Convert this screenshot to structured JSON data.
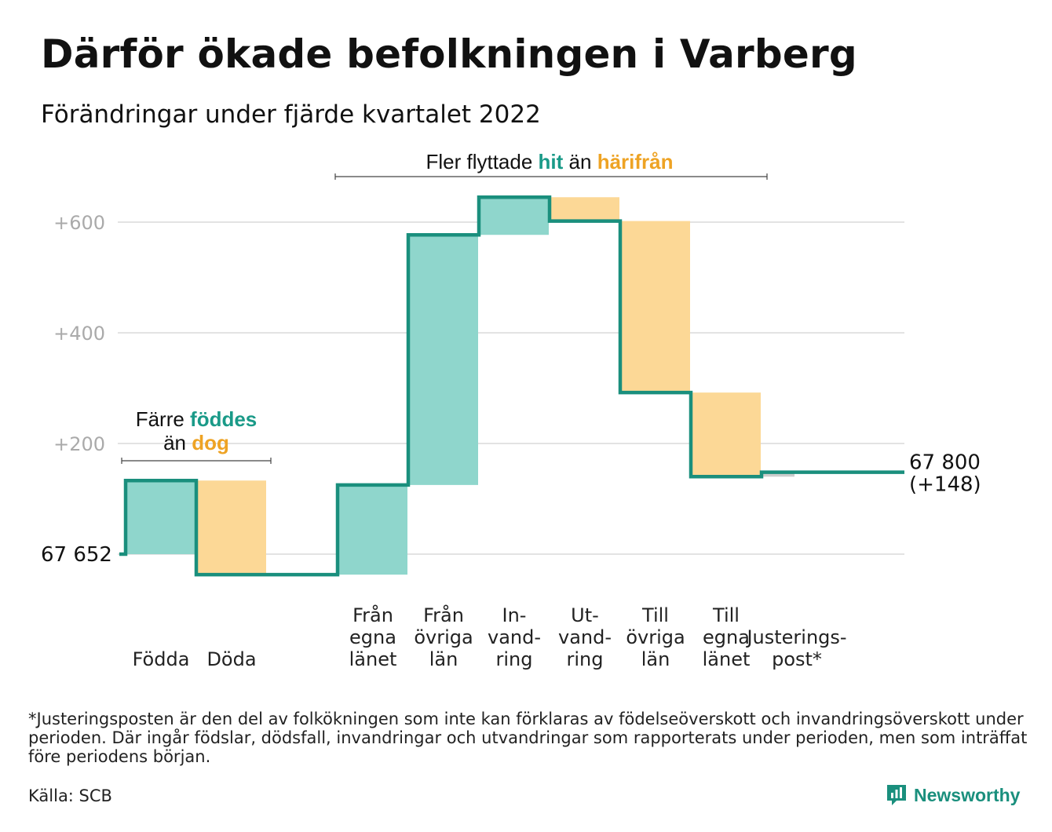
{
  "title": "Därför ökade befolkningen i Varberg",
  "subtitle": "Förändringar under fjärde kvartalet 2022",
  "footnote": "*Justeringsposten är den del av folkökningen som inte kan förklaras av födelseöverskott och invandringsöverskott under perioden. Där ingår födslar, dödsfall, invandringar och utvandringar som rapporterats under perioden, men som inträffat före periodens början.",
  "source": "Källa: SCB",
  "logo_text": "Newsworthy",
  "colors": {
    "inflow": "#8fd6cc",
    "outflow": "#fcd896",
    "line": "#1a8f7d",
    "adjust": "#cccccc",
    "teal_text": "#1a9a88",
    "orange_text": "#eea324"
  },
  "chart_data": {
    "type": "waterfall",
    "start_label": "67 652",
    "end_label_line1": "67 800",
    "end_label_line2": "(+148)",
    "y_ticks": [
      {
        "value": 200,
        "label": "+200"
      },
      {
        "value": 400,
        "label": "+400"
      },
      {
        "value": 600,
        "label": "+600"
      }
    ],
    "ylim": [
      -40,
      700
    ],
    "steps": [
      {
        "label_lines": [
          "Födda"
        ],
        "value": 133,
        "kind": "in"
      },
      {
        "label_lines": [
          "Döda"
        ],
        "value": -170,
        "kind": "out"
      },
      {
        "label_lines": [
          ""
        ],
        "value": 0,
        "kind": "gap"
      },
      {
        "label_lines": [
          "Från",
          "egna",
          "länet"
        ],
        "value": 162,
        "kind": "in"
      },
      {
        "label_lines": [
          "Från",
          "övriga",
          "län"
        ],
        "value": 452,
        "kind": "in"
      },
      {
        "label_lines": [
          "In-",
          "vand-",
          "ring"
        ],
        "value": 68,
        "kind": "in"
      },
      {
        "label_lines": [
          "Ut-",
          "vand-",
          "ring"
        ],
        "value": -43,
        "kind": "out"
      },
      {
        "label_lines": [
          "Till",
          "övriga",
          "län"
        ],
        "value": -310,
        "kind": "out"
      },
      {
        "label_lines": [
          "Till",
          "egna",
          "länet"
        ],
        "value": -152,
        "kind": "out"
      },
      {
        "label_lines": [
          "Justerings-",
          "post*"
        ],
        "value": 8,
        "kind": "adjust"
      }
    ],
    "annotations": {
      "births": {
        "line1": "Färre ",
        "line1_highlight": "föddes",
        "line2": "än ",
        "line2_highlight": "dog"
      },
      "migration": {
        "text1": "Fler flyttade ",
        "highlight1": "hit",
        "text2": " än ",
        "highlight2": "härifrån"
      }
    }
  }
}
